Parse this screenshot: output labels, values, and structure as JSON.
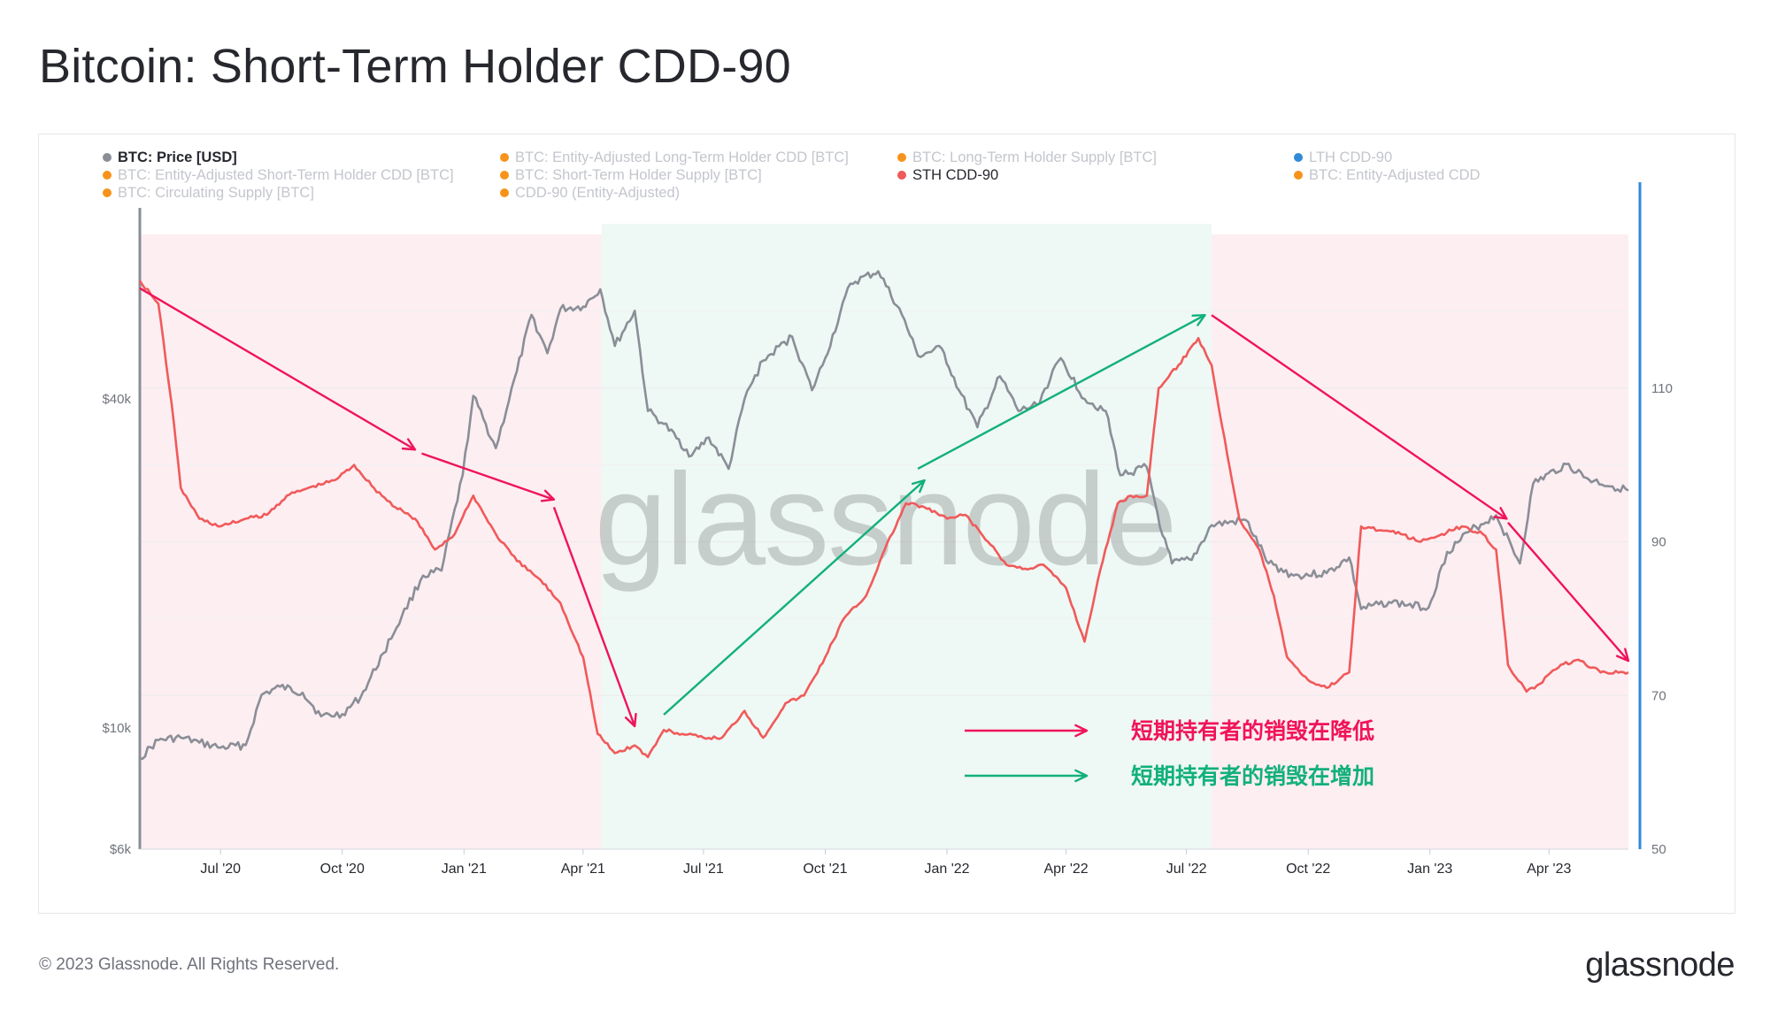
{
  "title": "Bitcoin: Short-Term Holder CDD-90",
  "footer": {
    "copyright": "© 2023 Glassnode. All Rights Reserved.",
    "logo": "glassnode"
  },
  "watermark": "glassnode",
  "legend": [
    {
      "label": "BTC: Price [USD]",
      "color": "#8a8e96",
      "active": true
    },
    {
      "label": "BTC: Entity-Adjusted Long-Term Holder CDD [BTC]",
      "color": "#f7931a",
      "active": false
    },
    {
      "label": "BTC: Long-Term Holder Supply [BTC]",
      "color": "#f7931a",
      "active": false
    },
    {
      "label": "LTH CDD-90",
      "color": "#2f8ad8",
      "active": false
    },
    {
      "label": "BTC: Entity-Adjusted Short-Term Holder CDD [BTC]",
      "color": "#f7931a",
      "active": false
    },
    {
      "label": "BTC: Short-Term Holder Supply [BTC]",
      "color": "#f7931a",
      "active": false
    },
    {
      "label": "STH CDD-90",
      "color": "#f05a5a",
      "active": true
    },
    {
      "label": "BTC: Entity-Adjusted CDD",
      "color": "#f7931a",
      "active": false
    },
    {
      "label": "BTC: Circulating Supply [BTC]",
      "color": "#f7931a",
      "active": false
    },
    {
      "label": "CDD-90 (Entity-Adjusted)",
      "color": "#f7931a",
      "active": false
    }
  ],
  "annotations": [
    {
      "text": "短期持有者的销毁在降低",
      "color": "#f0145a"
    },
    {
      "text": "短期持有者的销毁在增加",
      "color": "#12b07c"
    }
  ],
  "colors": {
    "price": "#8a8e96",
    "sth": "#f05a5a",
    "decrease_zone": "#fdeef2",
    "increase_zone": "#eef8f4",
    "decrease_arrow": "#f0145a",
    "increase_arrow": "#12b07c",
    "right_axis": "#2f8ad8",
    "left_axis": "#8a8e96"
  },
  "chart_data": {
    "type": "line",
    "x_range": [
      "2020-05-01",
      "2023-05-31"
    ],
    "x_ticks": [
      {
        "date": "2020-07-01",
        "label": "Jul '20"
      },
      {
        "date": "2020-10-01",
        "label": "Oct '20"
      },
      {
        "date": "2021-01-01",
        "label": "Jan '21"
      },
      {
        "date": "2021-04-01",
        "label": "Apr '21"
      },
      {
        "date": "2021-07-01",
        "label": "Jul '21"
      },
      {
        "date": "2021-10-01",
        "label": "Oct '21"
      },
      {
        "date": "2022-01-01",
        "label": "Jan '22"
      },
      {
        "date": "2022-04-01",
        "label": "Apr '22"
      },
      {
        "date": "2022-07-01",
        "label": "Jul '22"
      },
      {
        "date": "2022-10-01",
        "label": "Oct '22"
      },
      {
        "date": "2023-01-01",
        "label": "Jan '23"
      },
      {
        "date": "2023-04-01",
        "label": "Apr '23"
      }
    ],
    "y_left": {
      "scale": "log",
      "range": [
        6000,
        80000
      ],
      "ticks": [
        {
          "value": 6000,
          "label": "$6k"
        },
        {
          "value": 10000,
          "label": "$10k"
        },
        {
          "value": 40000,
          "label": "$40k"
        }
      ]
    },
    "y_right": {
      "scale": "linear",
      "range": [
        50,
        130
      ],
      "ticks": [
        {
          "value": 50,
          "label": "50"
        },
        {
          "value": 70,
          "label": "70"
        },
        {
          "value": 90,
          "label": "90"
        },
        {
          "value": 110,
          "label": "110"
        }
      ]
    },
    "zones": [
      {
        "start": "2020-05-01",
        "end": "2021-04-15",
        "trend": "decrease"
      },
      {
        "start": "2021-04-15",
        "end": "2022-07-20",
        "trend": "increase"
      },
      {
        "start": "2022-07-20",
        "end": "2023-05-31",
        "trend": "decrease"
      }
    ],
    "trend_arrows": [
      {
        "from": [
          "2020-05-01",
          123
        ],
        "to": [
          "2020-11-25",
          102
        ],
        "trend": "decrease"
      },
      {
        "from": [
          "2020-11-30",
          101.5
        ],
        "to": [
          "2021-03-10",
          95.5
        ],
        "trend": "decrease"
      },
      {
        "from": [
          "2021-03-10",
          94.5
        ],
        "to": [
          "2021-05-10",
          66
        ],
        "trend": "decrease"
      },
      {
        "from": [
          "2021-06-01",
          67.5
        ],
        "to": [
          "2021-12-15",
          98
        ],
        "trend": "increase"
      },
      {
        "from": [
          "2021-12-10",
          99.5
        ],
        "to": [
          "2022-07-15",
          119.5
        ],
        "trend": "increase"
      },
      {
        "from": [
          "2022-07-20",
          119.5
        ],
        "to": [
          "2023-02-28",
          93
        ],
        "trend": "decrease"
      },
      {
        "from": [
          "2023-03-01",
          92.5
        ],
        "to": [
          "2023-05-31",
          74.5
        ],
        "trend": "decrease"
      }
    ],
    "series": [
      {
        "name": "BTC: Price [USD]",
        "axis": "left",
        "points": [
          [
            "2020-05-01",
            8800
          ],
          [
            "2020-05-15",
            9500
          ],
          [
            "2020-06-01",
            9600
          ],
          [
            "2020-06-15",
            9400
          ],
          [
            "2020-07-01",
            9200
          ],
          [
            "2020-07-20",
            9300
          ],
          [
            "2020-08-01",
            11500
          ],
          [
            "2020-08-15",
            11900
          ],
          [
            "2020-09-01",
            11600
          ],
          [
            "2020-09-15",
            10500
          ],
          [
            "2020-10-01",
            10600
          ],
          [
            "2020-10-15",
            11400
          ],
          [
            "2020-11-01",
            13700
          ],
          [
            "2020-11-15",
            16000
          ],
          [
            "2020-12-01",
            19000
          ],
          [
            "2020-12-15",
            19400
          ],
          [
            "2020-12-31",
            29000
          ],
          [
            "2021-01-08",
            40500
          ],
          [
            "2021-01-25",
            32500
          ],
          [
            "2021-02-10",
            45000
          ],
          [
            "2021-02-21",
            57000
          ],
          [
            "2021-03-05",
            48500
          ],
          [
            "2021-03-15",
            58500
          ],
          [
            "2021-04-01",
            59000
          ],
          [
            "2021-04-14",
            63500
          ],
          [
            "2021-04-25",
            50000
          ],
          [
            "2021-05-10",
            58000
          ],
          [
            "2021-05-20",
            38000
          ],
          [
            "2021-06-01",
            36000
          ],
          [
            "2021-06-22",
            31500
          ],
          [
            "2021-07-05",
            34000
          ],
          [
            "2021-07-20",
            29800
          ],
          [
            "2021-08-01",
            40000
          ],
          [
            "2021-08-15",
            47000
          ],
          [
            "2021-09-06",
            52000
          ],
          [
            "2021-09-21",
            41500
          ],
          [
            "2021-10-01",
            47500
          ],
          [
            "2021-10-20",
            65000
          ],
          [
            "2021-11-10",
            68500
          ],
          [
            "2021-11-28",
            57000
          ],
          [
            "2021-12-10",
            48000
          ],
          [
            "2021-12-28",
            49500
          ],
          [
            "2022-01-10",
            41500
          ],
          [
            "2022-01-24",
            35500
          ],
          [
            "2022-02-10",
            44000
          ],
          [
            "2022-02-24",
            38000
          ],
          [
            "2022-03-10",
            39000
          ],
          [
            "2022-03-28",
            47500
          ],
          [
            "2022-04-15",
            40000
          ],
          [
            "2022-05-01",
            38000
          ],
          [
            "2022-05-12",
            29000
          ],
          [
            "2022-06-01",
            30000
          ],
          [
            "2022-06-13",
            22500
          ],
          [
            "2022-06-20",
            20000
          ],
          [
            "2022-07-05",
            20300
          ],
          [
            "2022-07-20",
            23500
          ],
          [
            "2022-08-15",
            24000
          ],
          [
            "2022-09-01",
            20000
          ],
          [
            "2022-09-20",
            19000
          ],
          [
            "2022-10-15",
            19200
          ],
          [
            "2022-11-01",
            20500
          ],
          [
            "2022-11-10",
            16500
          ],
          [
            "2022-12-01",
            17000
          ],
          [
            "2022-12-31",
            16600
          ],
          [
            "2023-01-14",
            21000
          ],
          [
            "2023-02-01",
            23000
          ],
          [
            "2023-02-20",
            24500
          ],
          [
            "2023-03-10",
            20000
          ],
          [
            "2023-03-20",
            28000
          ],
          [
            "2023-04-14",
            30400
          ],
          [
            "2023-05-01",
            28500
          ],
          [
            "2023-05-31",
            27200
          ]
        ]
      },
      {
        "name": "STH CDD-90",
        "axis": "right",
        "points": [
          [
            "2020-05-01",
            124
          ],
          [
            "2020-05-15",
            121
          ],
          [
            "2020-05-25",
            108
          ],
          [
            "2020-06-01",
            97
          ],
          [
            "2020-06-15",
            93
          ],
          [
            "2020-07-01",
            92
          ],
          [
            "2020-07-20",
            93
          ],
          [
            "2020-08-05",
            93.5
          ],
          [
            "2020-08-20",
            96
          ],
          [
            "2020-09-05",
            97
          ],
          [
            "2020-09-25",
            98
          ],
          [
            "2020-10-10",
            100
          ],
          [
            "2020-10-25",
            97
          ],
          [
            "2020-11-10",
            94.5
          ],
          [
            "2020-11-25",
            93
          ],
          [
            "2020-12-10",
            89
          ],
          [
            "2020-12-25",
            91
          ],
          [
            "2021-01-08",
            96
          ],
          [
            "2021-01-25",
            91
          ],
          [
            "2021-02-10",
            87.5
          ],
          [
            "2021-02-28",
            85
          ],
          [
            "2021-03-15",
            82
          ],
          [
            "2021-04-01",
            75
          ],
          [
            "2021-04-12",
            65
          ],
          [
            "2021-04-25",
            62.5
          ],
          [
            "2021-05-10",
            63.5
          ],
          [
            "2021-05-20",
            62
          ],
          [
            "2021-06-01",
            65.5
          ],
          [
            "2021-06-15",
            65
          ],
          [
            "2021-07-01",
            64.5
          ],
          [
            "2021-07-15",
            64.5
          ],
          [
            "2021-08-01",
            68
          ],
          [
            "2021-08-15",
            64.5
          ],
          [
            "2021-09-01",
            69
          ],
          [
            "2021-09-15",
            70
          ],
          [
            "2021-10-01",
            75
          ],
          [
            "2021-10-15",
            80
          ],
          [
            "2021-11-01",
            83
          ],
          [
            "2021-11-15",
            89
          ],
          [
            "2021-12-01",
            95
          ],
          [
            "2021-12-15",
            94.5
          ],
          [
            "2022-01-01",
            93
          ],
          [
            "2022-01-15",
            93.5
          ],
          [
            "2022-02-01",
            90
          ],
          [
            "2022-02-15",
            87
          ],
          [
            "2022-03-01",
            86.5
          ],
          [
            "2022-03-15",
            87
          ],
          [
            "2022-04-01",
            84
          ],
          [
            "2022-04-15",
            77
          ],
          [
            "2022-04-25",
            85
          ],
          [
            "2022-05-10",
            95
          ],
          [
            "2022-05-20",
            96
          ],
          [
            "2022-06-01",
            96
          ],
          [
            "2022-06-10",
            110
          ],
          [
            "2022-06-25",
            113
          ],
          [
            "2022-07-10",
            116.5
          ],
          [
            "2022-07-20",
            113
          ],
          [
            "2022-07-28",
            105
          ],
          [
            "2022-08-10",
            93
          ],
          [
            "2022-08-25",
            89
          ],
          [
            "2022-09-05",
            83
          ],
          [
            "2022-09-15",
            75
          ],
          [
            "2022-10-01",
            72
          ],
          [
            "2022-10-15",
            71
          ],
          [
            "2022-11-01",
            73
          ],
          [
            "2022-11-10",
            92
          ],
          [
            "2022-11-25",
            91.5
          ],
          [
            "2022-12-10",
            91
          ],
          [
            "2022-12-25",
            90
          ],
          [
            "2023-01-10",
            91
          ],
          [
            "2023-01-25",
            92
          ],
          [
            "2023-02-10",
            91
          ],
          [
            "2023-02-20",
            89
          ],
          [
            "2023-03-01",
            74
          ],
          [
            "2023-03-15",
            70.5
          ],
          [
            "2023-03-25",
            71.5
          ],
          [
            "2023-04-10",
            74
          ],
          [
            "2023-04-25",
            74.5
          ],
          [
            "2023-05-10",
            73
          ],
          [
            "2023-05-31",
            73
          ]
        ]
      }
    ]
  }
}
